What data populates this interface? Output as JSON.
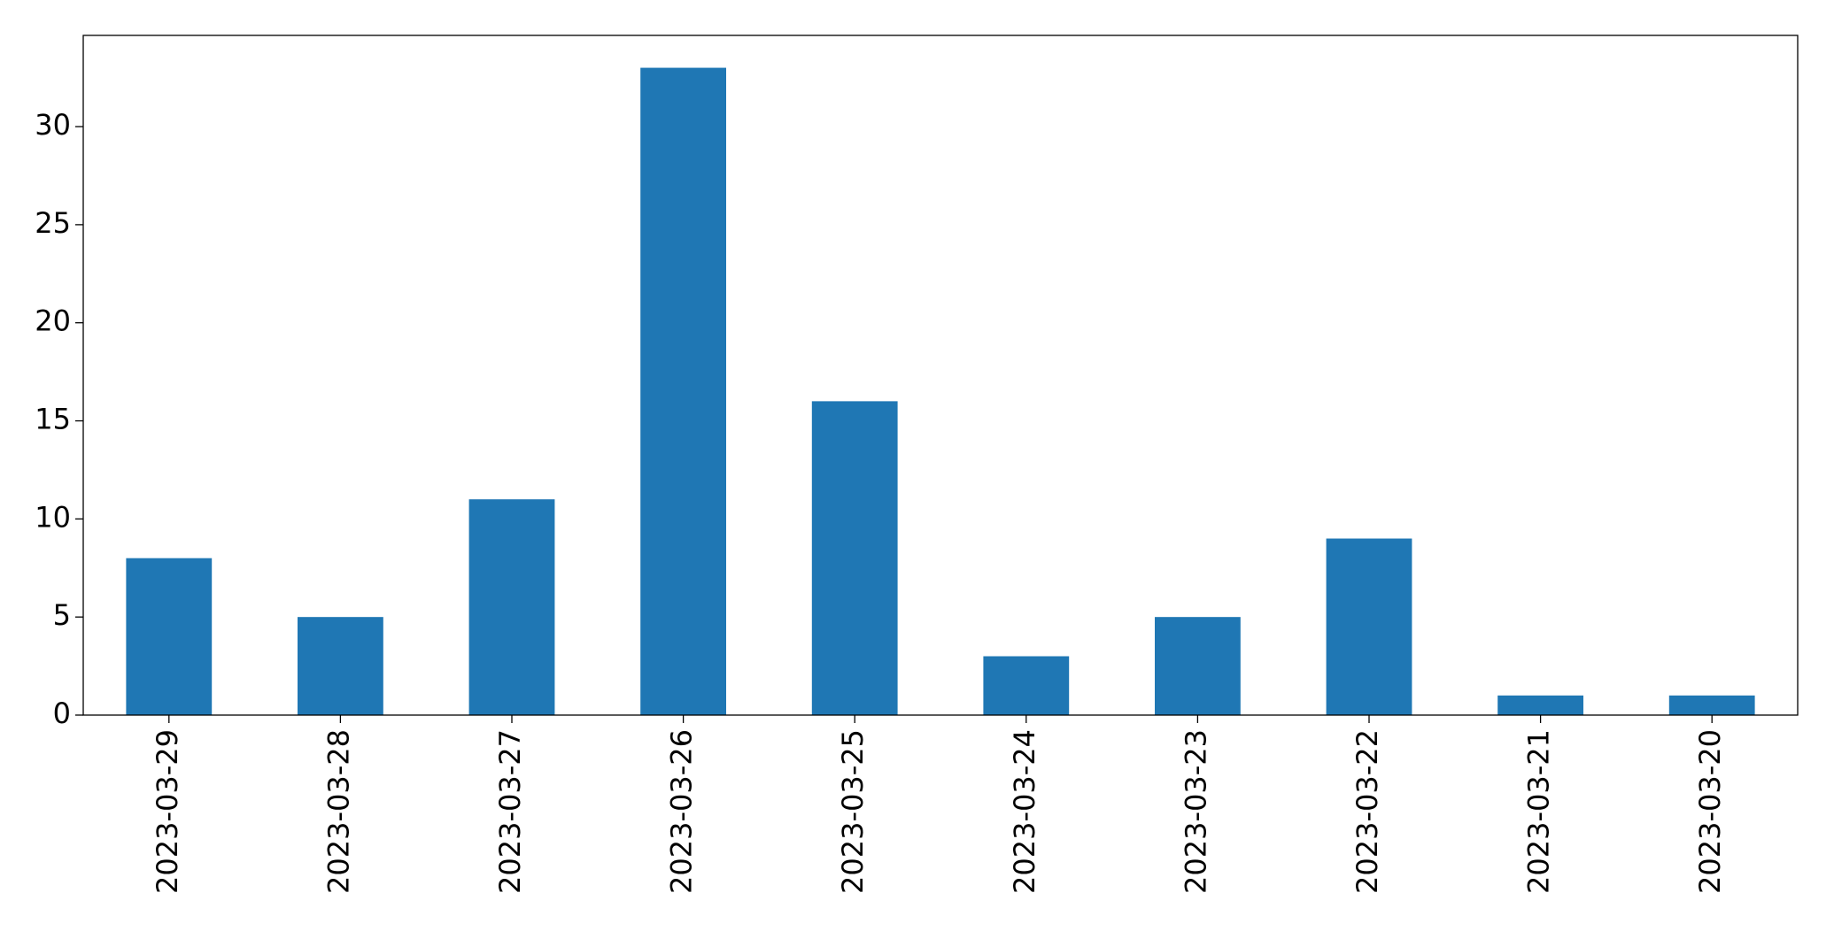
{
  "chart_data": {
    "type": "bar",
    "categories": [
      "2023-03-29",
      "2023-03-28",
      "2023-03-27",
      "2023-03-26",
      "2023-03-25",
      "2023-03-24",
      "2023-03-23",
      "2023-03-22",
      "2023-03-21",
      "2023-03-20"
    ],
    "values": [
      8,
      5,
      11,
      33,
      16,
      3,
      5,
      9,
      1,
      1
    ],
    "color": "#1f77b4",
    "ylim": [
      0,
      34.65
    ],
    "yticks": [
      0,
      5,
      10,
      15,
      20,
      25,
      30
    ],
    "grid": false
  }
}
